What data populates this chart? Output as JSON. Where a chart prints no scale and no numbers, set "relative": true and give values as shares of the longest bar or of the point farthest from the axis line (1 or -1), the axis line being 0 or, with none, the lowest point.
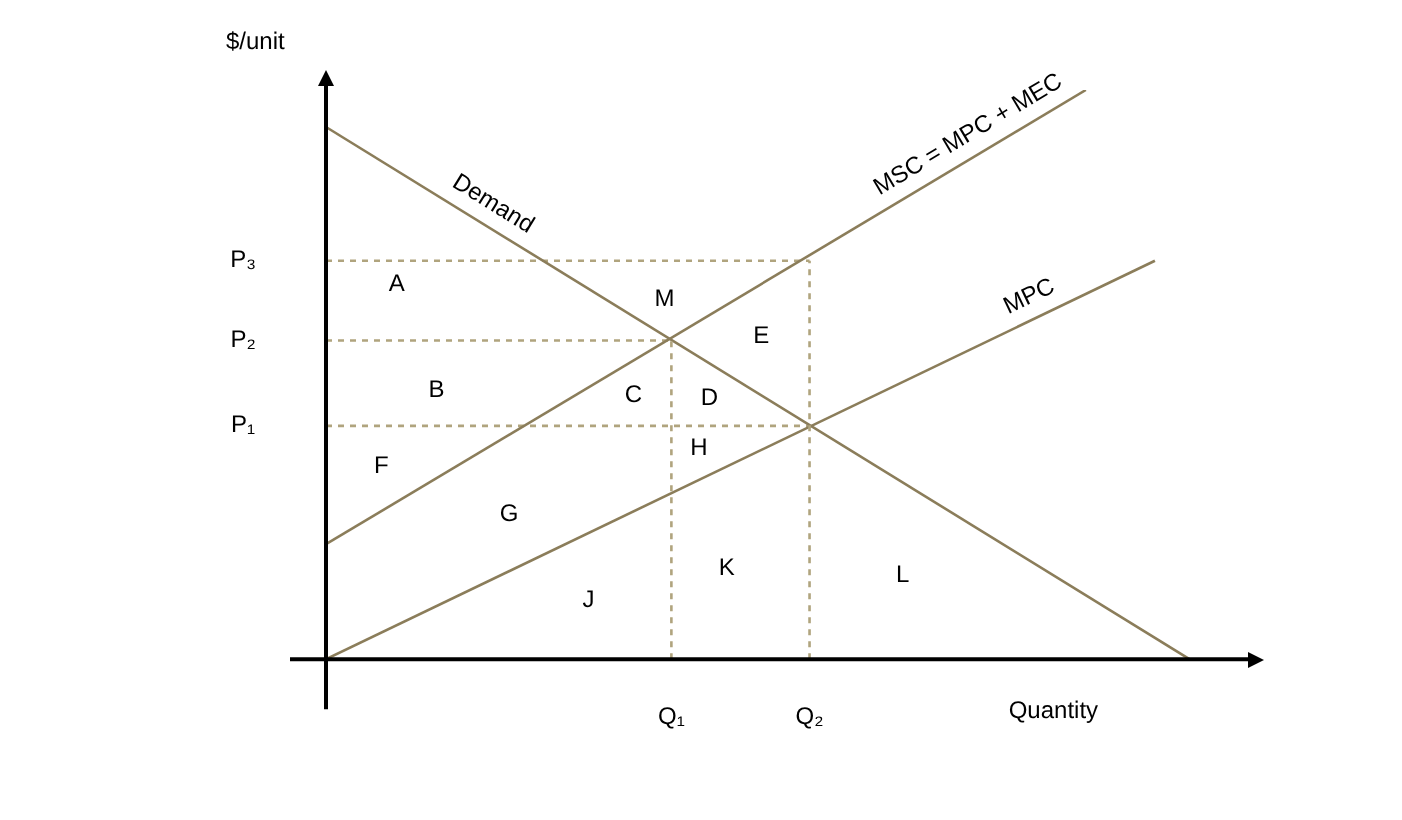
{
  "chart_data": {
    "type": "line",
    "relative": true,
    "ylabel": "$/unit",
    "xlabel": "Quantity",
    "categories": [
      null,
      null,
      null,
      null,
      null,
      null,
      null,
      null,
      null,
      null,
      "Q₁",
      null,
      null,
      null,
      "Q₂",
      null,
      null,
      null,
      null,
      null,
      null,
      null,
      null,
      null,
      null,
      null,
      null
    ],
    "series": [
      {
        "name": "Demand",
        "color": "#8b7d5a",
        "values": [
          0.935,
          null,
          null,
          null,
          null,
          null,
          null,
          null,
          null,
          null,
          null,
          null,
          null,
          null,
          null,
          null,
          null,
          null,
          null,
          null,
          null,
          null,
          null,
          null,
          null,
          0,
          null
        ]
      },
      {
        "name": "MSC = MPC + MEC",
        "color": "#8b7d5a",
        "values": [
          0.202,
          null,
          null,
          null,
          null,
          null,
          null,
          null,
          null,
          null,
          null,
          null,
          null,
          null,
          null,
          null,
          null,
          null,
          null,
          null,
          null,
          null,
          1,
          null,
          null,
          null,
          null
        ]
      },
      {
        "name": "MPC",
        "color": "#8b7d5a",
        "values": [
          0,
          null,
          null,
          null,
          null,
          null,
          null,
          null,
          null,
          null,
          null,
          null,
          null,
          null,
          null,
          null,
          null,
          null,
          null,
          null,
          null,
          null,
          null,
          null,
          0.7,
          null,
          null
        ]
      },
      {
        "color": "#b0a47e",
        "line_style": "dashed",
        "values": [
          0.7,
          null,
          null,
          null,
          null,
          null,
          null,
          null,
          null,
          null,
          null,
          null,
          null,
          null,
          0.7,
          null,
          null,
          null,
          null,
          null,
          null,
          null,
          null,
          null,
          null,
          null,
          null
        ]
      },
      {
        "color": "#b0a47e",
        "line_style": "dashed",
        "values": [
          0.56,
          null,
          null,
          null,
          null,
          null,
          null,
          null,
          null,
          null,
          0.56,
          null,
          null,
          null,
          null,
          null,
          null,
          null,
          null,
          null,
          null,
          null,
          null,
          null,
          null,
          null,
          null
        ]
      },
      {
        "color": "#b0a47e",
        "line_style": "dashed",
        "values": [
          0.41,
          null,
          null,
          null,
          null,
          null,
          null,
          null,
          null,
          null,
          null,
          null,
          null,
          null,
          0.41,
          null,
          null,
          null,
          null,
          null,
          null,
          null,
          null,
          null,
          null,
          null,
          null
        ]
      }
    ],
    "ref_lines": [
      {
        "axis": "x",
        "value": "Q₁",
        "color": "#b0a47e",
        "line_style": "dashed"
      },
      {
        "axis": "x",
        "value": "Q₂",
        "color": "#b0a47e",
        "line_style": "dashed"
      }
    ],
    "annotations": [
      "A",
      "M",
      "E",
      "B",
      "C",
      "D",
      "H",
      "F",
      "G",
      "K",
      "L",
      "J",
      "P₃",
      "P₂",
      "P₁"
    ]
  }
}
